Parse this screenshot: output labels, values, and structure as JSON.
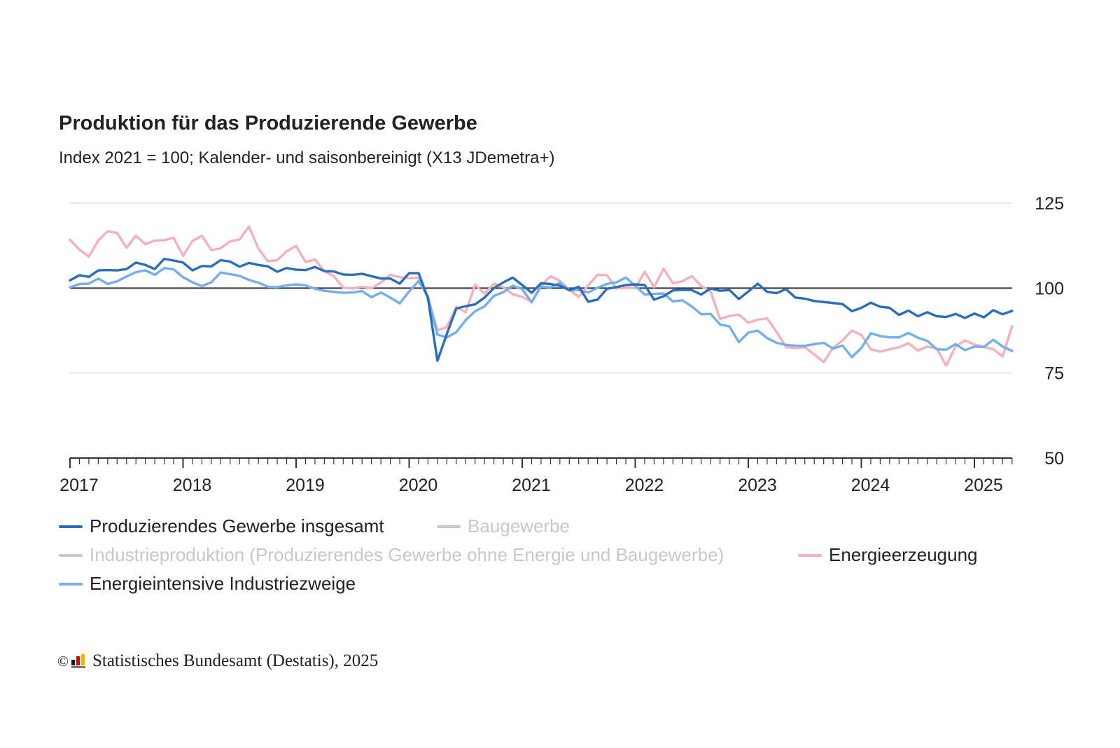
{
  "title": "Produktion für das Produzierende Gewerbe",
  "subtitle": "Index 2021 = 100; Kalender- und saisonbereinigt (X13 JDemetra+)",
  "credit": {
    "copyright_symbol": "©",
    "text": "Statistisches Bundesamt (Destatis), 2025"
  },
  "chart_data": {
    "type": "line",
    "x_start": "2017-01",
    "x_end": "2025-05",
    "x_ticks": [
      "2017",
      "2018",
      "2019",
      "2020",
      "2021",
      "2022",
      "2023",
      "2024",
      "2025"
    ],
    "y_ticks": [
      "125",
      "100",
      "75",
      "50"
    ],
    "ylim": [
      50,
      125
    ],
    "y_axis_side": "right",
    "reference_line": 100,
    "grid": true,
    "legend_position": "bottom",
    "series": [
      {
        "name": "Produzierendes Gewerbe insgesamt",
        "color": "#2a6ebb",
        "active": true,
        "values": [
          102.3,
          103.8,
          103.3,
          105.2,
          105.3,
          105.2,
          105.6,
          107.5,
          106.8,
          105.6,
          108.6,
          108.1,
          107.5,
          105.2,
          106.5,
          106.4,
          108.2,
          107.8,
          106.3,
          107.4,
          106.8,
          106.4,
          104.8,
          105.9,
          105.4,
          105.3,
          106.2,
          105.0,
          104.9,
          104.0,
          103.9,
          104.2,
          103.5,
          102.8,
          102.8,
          101.3,
          104.4,
          104.4,
          97.0,
          78.6,
          86.5,
          94.0,
          94.7,
          95.2,
          97.2,
          100.0,
          101.7,
          103.1,
          100.9,
          98.6,
          101.4,
          101.2,
          100.7,
          99.4,
          100.4,
          96.0,
          96.6,
          99.8,
          100.3,
          100.9,
          101.1,
          100.9,
          96.6,
          97.6,
          99.3,
          99.5,
          99.4,
          98.1,
          99.9,
          99.2,
          99.4,
          96.8,
          99.0,
          101.3,
          98.9,
          98.5,
          99.7,
          97.2,
          96.9,
          96.2,
          95.9,
          95.6,
          95.3,
          93.2,
          94.2,
          95.7,
          94.5,
          94.2,
          92.1,
          93.4,
          91.7,
          92.9,
          91.7,
          91.5,
          92.4,
          91.2,
          92.5,
          91.4,
          93.5,
          92.3,
          93.3
        ]
      },
      {
        "name": "Baugewerbe",
        "color": "#c8c8c8",
        "active": false,
        "values": []
      },
      {
        "name": "Industrieproduktion (Produzierendes Gewerbe ohne Energie und Baugewerbe)",
        "color": "#c8c8c8",
        "active": false,
        "values": []
      },
      {
        "name": "Energieerzeugung",
        "color": "#f5b0b9",
        "active": true,
        "values": [
          114.2,
          111.3,
          109.3,
          114.0,
          116.7,
          116.2,
          111.9,
          115.4,
          112.9,
          114.0,
          114.1,
          114.8,
          109.5,
          113.9,
          115.4,
          111.2,
          111.7,
          113.8,
          114.3,
          118.1,
          111.6,
          107.9,
          108.2,
          110.8,
          112.4,
          107.7,
          108.4,
          105.0,
          103.5,
          100.1,
          99.9,
          100.4,
          100.0,
          101.6,
          103.9,
          103.2,
          102.9,
          103.1,
          97.0,
          87.6,
          88.5,
          94.4,
          92.9,
          101.0,
          98.4,
          101.3,
          100.3,
          98.2,
          97.4,
          96.0,
          100.7,
          103.5,
          102.1,
          99.5,
          97.4,
          100.8,
          103.9,
          103.8,
          99.9,
          100.1,
          100.0,
          104.8,
          100.3,
          105.7,
          101.4,
          102.0,
          103.5,
          100.6,
          99.0,
          90.9,
          91.8,
          92.2,
          89.8,
          90.7,
          91.1,
          87.1,
          82.7,
          82.3,
          82.6,
          80.5,
          78.2,
          82.5,
          84.6,
          87.5,
          86.2,
          82.0,
          81.3,
          82.0,
          82.6,
          83.8,
          81.6,
          82.8,
          82.2,
          77.2,
          82.8,
          84.6,
          83.4,
          82.7,
          82.0,
          79.9,
          88.8
        ]
      },
      {
        "name": "Energieintensive Industriezweige",
        "color": "#72aef0",
        "active": true,
        "values": [
          100.2,
          101.2,
          101.3,
          102.8,
          101.2,
          102.0,
          103.4,
          104.7,
          105.2,
          103.9,
          105.9,
          105.5,
          103.2,
          101.7,
          100.6,
          101.7,
          104.6,
          104.1,
          103.6,
          102.4,
          101.6,
          100.4,
          100.3,
          100.8,
          101.1,
          100.8,
          99.8,
          99.2,
          98.9,
          98.6,
          98.7,
          99.1,
          97.3,
          98.7,
          97.2,
          95.5,
          99.0,
          102.1,
          97.5,
          86.3,
          85.5,
          87.0,
          90.6,
          93.2,
          94.6,
          97.7,
          98.8,
          100.7,
          99.7,
          95.8,
          100.5,
          100.2,
          101.6,
          99.3,
          99.4,
          98.7,
          100.1,
          101.2,
          101.7,
          103.1,
          100.7,
          98.1,
          98.3,
          98.4,
          96.1,
          96.4,
          94.6,
          92.3,
          92.4,
          89.3,
          88.7,
          84.1,
          86.9,
          87.5,
          85.3,
          83.9,
          83.3,
          83.1,
          83.0,
          83.5,
          83.9,
          82.2,
          83.1,
          79.7,
          82.4,
          86.7,
          85.9,
          85.5,
          85.5,
          86.8,
          85.4,
          84.5,
          82.0,
          81.9,
          83.5,
          81.7,
          82.8,
          82.7,
          84.8,
          82.8,
          81.5
        ]
      }
    ]
  }
}
